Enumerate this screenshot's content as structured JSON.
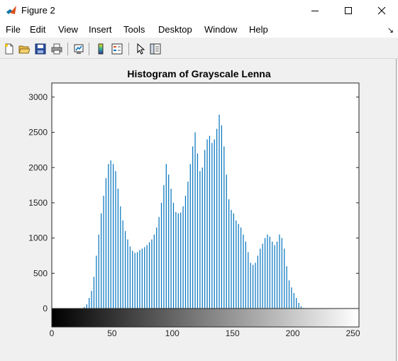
{
  "window": {
    "title": "Figure 2"
  },
  "menu": [
    "File",
    "Edit",
    "View",
    "Insert",
    "Tools",
    "Desktop",
    "Window",
    "Help"
  ],
  "toolbar": {
    "buttons": [
      "new-figure-icon",
      "open-file-icon",
      "save-icon",
      "print-icon",
      "link-plot-icon",
      "insert-colorbar-icon",
      "insert-legend-icon",
      "pointer-icon",
      "property-inspector-icon"
    ]
  },
  "colors": {
    "bar": "#0072bd",
    "axes": "#262626",
    "background": "#f0f0f0"
  },
  "chart_data": {
    "type": "bar",
    "title": "Histogram of Grayscale Lenna",
    "xlabel": "",
    "ylabel": "",
    "xlim": [
      0,
      255
    ],
    "ylim": [
      0,
      3200
    ],
    "xticks": [
      0,
      50,
      100,
      150,
      200,
      250
    ],
    "yticks": [
      0,
      500,
      1000,
      1500,
      2000,
      2500,
      3000
    ],
    "grid": false,
    "colorbar": "grayscale 0-255",
    "x": [
      25,
      27,
      29,
      31,
      33,
      35,
      37,
      39,
      41,
      43,
      45,
      47,
      49,
      51,
      53,
      55,
      57,
      59,
      61,
      63,
      65,
      67,
      69,
      71,
      73,
      75,
      77,
      79,
      81,
      83,
      85,
      87,
      89,
      91,
      93,
      95,
      97,
      99,
      101,
      103,
      105,
      107,
      109,
      111,
      113,
      115,
      117,
      119,
      121,
      123,
      125,
      127,
      129,
      131,
      133,
      135,
      137,
      139,
      141,
      143,
      145,
      147,
      149,
      151,
      153,
      155,
      157,
      159,
      161,
      163,
      165,
      167,
      169,
      171,
      173,
      175,
      177,
      179,
      181,
      183,
      185,
      187,
      189,
      191,
      193,
      195,
      197,
      199,
      201,
      203,
      205,
      207,
      209,
      211,
      213,
      215,
      217,
      219,
      221,
      223,
      225,
      227,
      229,
      231
    ],
    "values": [
      5,
      20,
      60,
      150,
      250,
      450,
      750,
      1050,
      1350,
      1600,
      1850,
      2050,
      2100,
      2050,
      1950,
      1700,
      1450,
      1250,
      1100,
      980,
      880,
      820,
      790,
      800,
      830,
      850,
      870,
      900,
      940,
      980,
      1050,
      1150,
      1300,
      1500,
      1750,
      2050,
      1900,
      1700,
      1500,
      1370,
      1350,
      1360,
      1450,
      1600,
      1800,
      2050,
      2300,
      2500,
      2200,
      1950,
      2000,
      2250,
      2400,
      2450,
      2350,
      2400,
      2550,
      2750,
      2600,
      2300,
      1900,
      1550,
      1400,
      1350,
      1250,
      1200,
      1150,
      1050,
      950,
      800,
      650,
      620,
      650,
      750,
      850,
      920,
      1000,
      1050,
      1020,
      950,
      900,
      950,
      1050,
      1000,
      850,
      600,
      400,
      300,
      220,
      150,
      80,
      30,
      8,
      2,
      0,
      0,
      0,
      0,
      0,
      0,
      0,
      0,
      0,
      0
    ]
  }
}
